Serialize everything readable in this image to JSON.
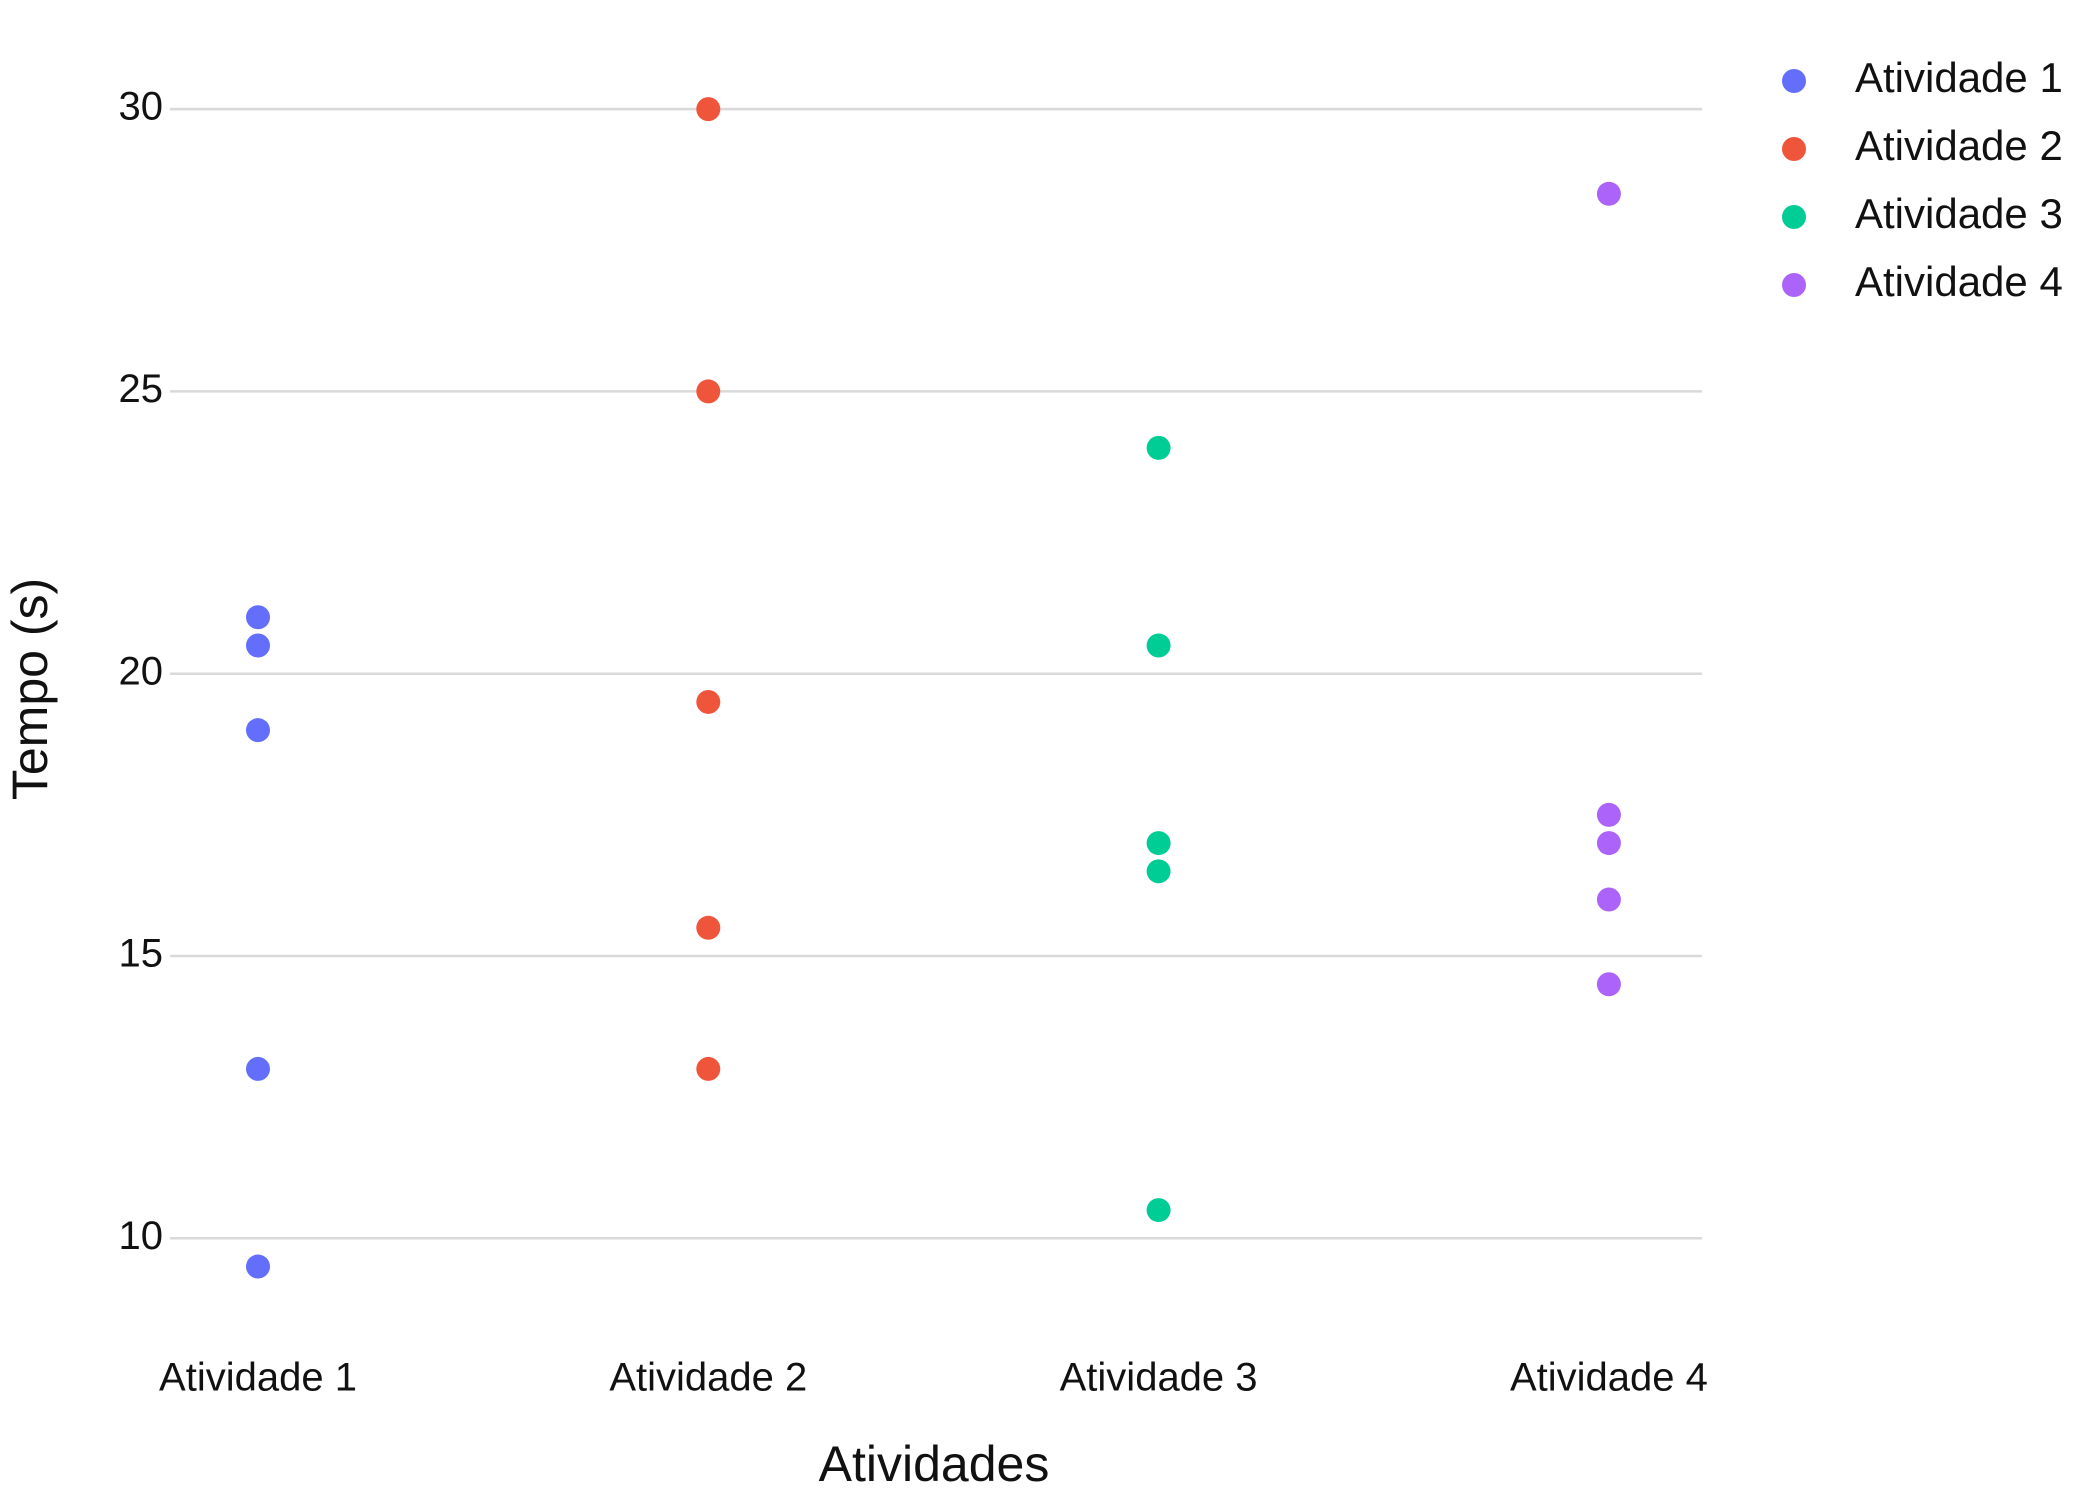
{
  "chart_data": {
    "type": "strip",
    "x_label": "Atividades",
    "y_label": "Tempo (s)",
    "categories": [
      "Atividade 1",
      "Atividade 2",
      "Atividade 3",
      "Atividade 4"
    ],
    "series": [
      {
        "name": "Atividade 1",
        "color": "#636efa",
        "x": [
          "Atividade 1",
          "Atividade 1",
          "Atividade 1",
          "Atividade 1",
          "Atividade 1"
        ],
        "values": [
          21,
          20.5,
          19,
          13,
          9.5
        ]
      },
      {
        "name": "Atividade 2",
        "color": "#ef553b",
        "x": [
          "Atividade 2",
          "Atividade 2",
          "Atividade 2",
          "Atividade 2",
          "Atividade 2"
        ],
        "values": [
          30,
          25,
          19.5,
          15.5,
          13
        ]
      },
      {
        "name": "Atividade 3",
        "color": "#00cc96",
        "x": [
          "Atividade 3",
          "Atividade 3",
          "Atividade 3",
          "Atividade 3",
          "Atividade 3"
        ],
        "values": [
          24,
          20.5,
          17,
          16.5,
          10.5
        ]
      },
      {
        "name": "Atividade 4",
        "color": "#ab63fa",
        "x": [
          "Atividade 4",
          "Atividade 4",
          "Atividade 4",
          "Atividade 4",
          "Atividade 4"
        ],
        "values": [
          28.5,
          17.5,
          17,
          16,
          14.5
        ]
      }
    ],
    "ylim": [
      8.5,
      31.1
    ],
    "yticks": [
      10,
      15,
      20,
      25,
      30
    ],
    "grid": true,
    "legend": "top-right"
  }
}
